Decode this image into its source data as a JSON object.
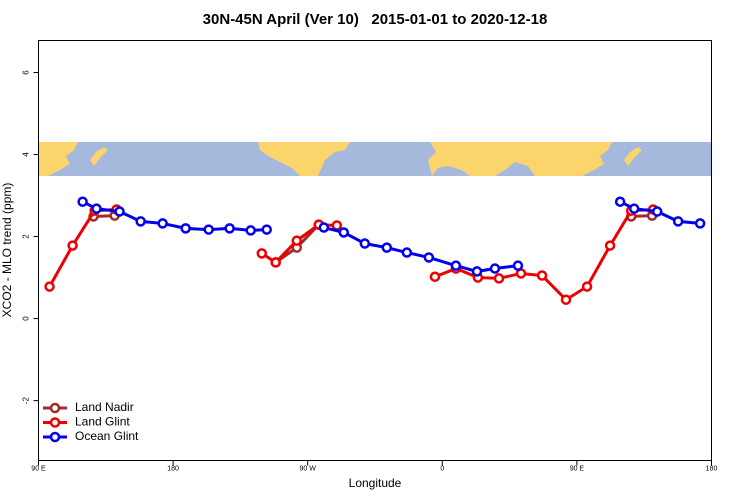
{
  "chart_data": {
    "type": "line",
    "title": "30N-45N April (Ver 10)   2015-01-01 to 2020-12-18",
    "xlabel": "Longitude",
    "ylabel": "XCO2 - MLO trend (ppm)",
    "xlim": [
      90,
      540
    ],
    "ylim": [
      -3.46,
      6.78
    ],
    "xticks": [
      {
        "value": 90,
        "label": "90 E"
      },
      180,
      {
        "value": 270,
        "label": "90 W"
      },
      {
        "value": 360,
        "label": "0"
      },
      {
        "value": 450,
        "label": "90 E"
      },
      {
        "value": 540,
        "label": "180"
      }
    ],
    "yticks": [
      -2,
      0,
      2,
      4,
      6
    ],
    "legend": "bottom-left",
    "series": [
      {
        "name": "Land Nadir",
        "color": "#a52a2a",
        "x": [
          126.8,
          140.9,
          null,
          248.6,
          262.7,
          277.4,
          null,
          486.3,
          500.3
        ],
        "values": [
          2.49,
          2.51,
          null,
          1.37,
          1.73,
          2.29,
          null,
          2.49,
          2.51
        ]
      },
      {
        "name": "Land Glint",
        "color": "#ee0000",
        "x": [
          97.4,
          112.8,
          127.5,
          142.2,
          null,
          239.3,
          248.6,
          262.7,
          277.4,
          289.5,
          null,
          355.1,
          369.1,
          383.8,
          397.9,
          412.6,
          426.7,
          442.7,
          456.8,
          472.2,
          486.3,
          501.0
        ],
        "values": [
          0.78,
          1.78,
          2.63,
          2.66,
          null,
          1.59,
          1.37,
          1.9,
          2.29,
          2.27,
          null,
          1.02,
          1.22,
          1.0,
          0.98,
          1.1,
          1.05,
          0.46,
          0.78,
          1.78,
          2.63,
          2.66
        ]
      },
      {
        "name": "Ocean Glint",
        "color": "#0000ee",
        "x": [
          119.5,
          128.8,
          144.2,
          158.3,
          173.0,
          188.4,
          203.8,
          217.8,
          231.9,
          242.6,
          null,
          280.8,
          294.1,
          308.2,
          322.9,
          336.3,
          351.0,
          369.1,
          383.2,
          395.2,
          410.6,
          null,
          478.9,
          488.3,
          503.7,
          517.7,
          532.4
        ],
        "values": [
          2.85,
          2.68,
          2.61,
          2.37,
          2.32,
          2.2,
          2.17,
          2.2,
          2.15,
          2.17,
          null,
          2.22,
          2.1,
          1.83,
          1.73,
          1.61,
          1.49,
          1.29,
          1.15,
          1.22,
          1.29,
          null,
          2.85,
          2.68,
          2.61,
          2.37,
          2.32
        ]
      }
    ]
  }
}
